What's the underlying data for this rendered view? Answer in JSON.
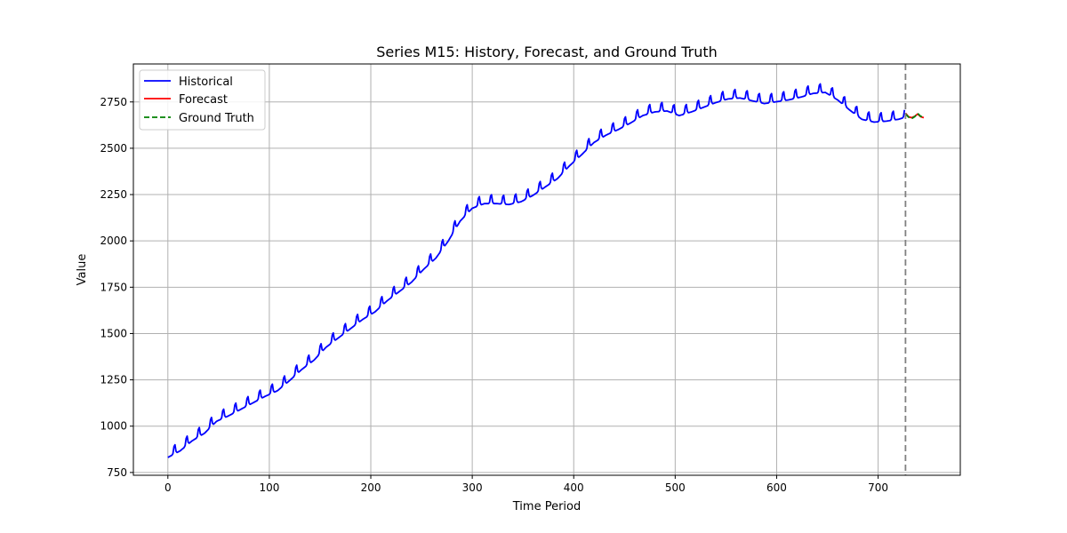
{
  "chart_data": {
    "type": "line",
    "title": "Series M15: History, Forecast, and Ground Truth",
    "xlabel": "Time Period",
    "ylabel": "Value",
    "xlim": [
      -34,
      781
    ],
    "ylim": [
      735,
      2955
    ],
    "xticks": [
      0,
      100,
      200,
      300,
      400,
      500,
      600,
      700
    ],
    "yticks": [
      750,
      1000,
      1250,
      1500,
      1750,
      2000,
      2250,
      2500,
      2750
    ],
    "grid": true,
    "legend_position": "upper-left",
    "forecast_start": 727,
    "series": [
      {
        "name": "Historical",
        "color": "#0000ff",
        "style": "solid",
        "anchors": [
          [
            0,
            845
          ],
          [
            12,
            880
          ],
          [
            24,
            935
          ],
          [
            36,
            975
          ],
          [
            48,
            1040
          ],
          [
            60,
            1070
          ],
          [
            72,
            1105
          ],
          [
            84,
            1140
          ],
          [
            96,
            1175
          ],
          [
            108,
            1205
          ],
          [
            120,
            1260
          ],
          [
            132,
            1320
          ],
          [
            144,
            1370
          ],
          [
            156,
            1440
          ],
          [
            168,
            1490
          ],
          [
            180,
            1540
          ],
          [
            192,
            1590
          ],
          [
            204,
            1630
          ],
          [
            216,
            1690
          ],
          [
            228,
            1740
          ],
          [
            240,
            1790
          ],
          [
            252,
            1860
          ],
          [
            264,
            1920
          ],
          [
            276,
            2010
          ],
          [
            288,
            2120
          ],
          [
            300,
            2190
          ],
          [
            312,
            2215
          ],
          [
            324,
            2215
          ],
          [
            336,
            2210
          ],
          [
            348,
            2225
          ],
          [
            360,
            2260
          ],
          [
            372,
            2305
          ],
          [
            384,
            2350
          ],
          [
            396,
            2420
          ],
          [
            408,
            2480
          ],
          [
            420,
            2545
          ],
          [
            432,
            2585
          ],
          [
            444,
            2615
          ],
          [
            456,
            2650
          ],
          [
            468,
            2690
          ],
          [
            480,
            2710
          ],
          [
            492,
            2715
          ],
          [
            504,
            2690
          ],
          [
            516,
            2710
          ],
          [
            528,
            2735
          ],
          [
            540,
            2760
          ],
          [
            552,
            2780
          ],
          [
            564,
            2785
          ],
          [
            576,
            2770
          ],
          [
            588,
            2755
          ],
          [
            600,
            2765
          ],
          [
            612,
            2775
          ],
          [
            624,
            2790
          ],
          [
            636,
            2810
          ],
          [
            648,
            2815
          ],
          [
            660,
            2775
          ],
          [
            672,
            2720
          ],
          [
            684,
            2670
          ],
          [
            696,
            2655
          ],
          [
            708,
            2660
          ],
          [
            720,
            2670
          ],
          [
            726,
            2680
          ]
        ],
        "seasonal_amplitude": 55,
        "period": 12
      },
      {
        "name": "Forecast",
        "color": "#ff0000",
        "style": "solid",
        "anchors": [
          [
            727,
            2690
          ],
          [
            730,
            2670
          ],
          [
            733,
            2665
          ],
          [
            736,
            2672
          ],
          [
            739,
            2685
          ],
          [
            742,
            2670
          ],
          [
            745,
            2665
          ]
        ],
        "seasonal_amplitude": 0,
        "period": 12
      },
      {
        "name": "Ground Truth",
        "color": "#008000",
        "style": "dashed",
        "anchors": [
          [
            727,
            2685
          ],
          [
            730,
            2668
          ],
          [
            733,
            2660
          ],
          [
            736,
            2670
          ],
          [
            739,
            2688
          ],
          [
            742,
            2672
          ],
          [
            745,
            2668
          ]
        ],
        "seasonal_amplitude": 0,
        "period": 12
      }
    ]
  }
}
